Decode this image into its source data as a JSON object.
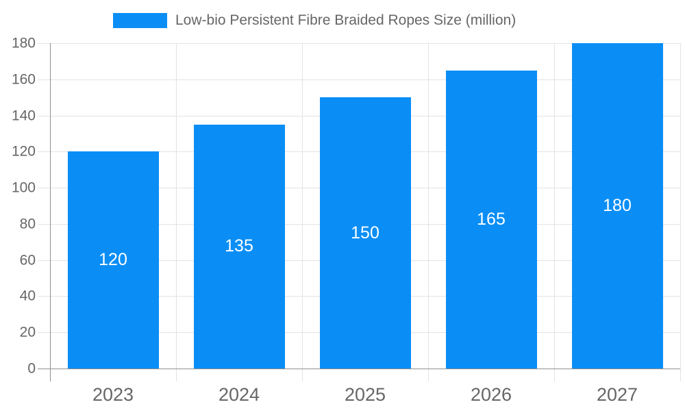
{
  "chart_data": {
    "type": "bar",
    "title": "Low-bio Persistent Fibre Braided Ropes Size (million)",
    "categories": [
      "2023",
      "2024",
      "2025",
      "2026",
      "2027"
    ],
    "values": [
      120,
      135,
      150,
      165,
      180
    ],
    "bar_labels": [
      "120",
      "135",
      "150",
      "165",
      "180"
    ],
    "yticks": [
      0,
      20,
      40,
      60,
      80,
      100,
      120,
      140,
      160,
      180
    ],
    "ylim": [
      0,
      180
    ],
    "xlabel": "",
    "ylabel": "",
    "legend_position": "top",
    "grid": true,
    "colors": {
      "bar": "#0a8ef6",
      "bar_label": "#ffffff",
      "axis_text": "#666666",
      "legend_text": "#666666",
      "gridline": "#e3e3e3",
      "axis_line": "#8f8f8f",
      "background": "#ffffff"
    }
  }
}
